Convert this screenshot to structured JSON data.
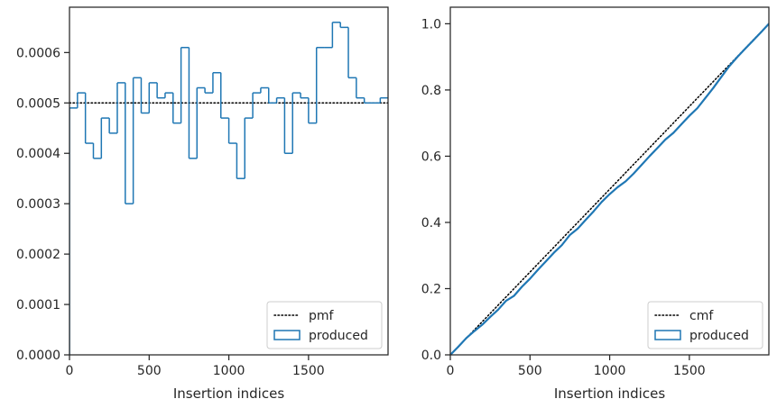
{
  "chart_data": [
    {
      "type": "line",
      "xlabel": "Insertion indices",
      "ylabel": "",
      "xlim": [
        0,
        1999
      ],
      "ylim": [
        0,
        0.00069
      ],
      "xticks": [
        0,
        500,
        1000,
        1500
      ],
      "yticks": [
        0,
        0.0001,
        0.0002,
        0.0003,
        0.0004,
        0.0005,
        0.0006
      ],
      "ytick_labels": [
        "0.0000",
        "0.0001",
        "0.0002",
        "0.0003",
        "0.0004",
        "0.0005",
        "0.0006"
      ],
      "grid": false,
      "legend_position": "lower right",
      "series": [
        {
          "name": "pmf",
          "style": "dotted",
          "color": "#000000",
          "x": [
            0,
            1999
          ],
          "y": [
            0.0005,
            0.0005
          ]
        },
        {
          "name": "produced",
          "style": "step",
          "color": "#1f77b4",
          "bin_width": 50,
          "bin_edges_start": 0,
          "values": [
            0.00049,
            0.00052,
            0.00042,
            0.00039,
            0.00047,
            0.00044,
            0.00054,
            0.0003,
            0.00055,
            0.00048,
            0.00054,
            0.00051,
            0.00052,
            0.00046,
            0.00061,
            0.00039,
            0.00053,
            0.00052,
            0.00056,
            0.00047,
            0.00042,
            0.00035,
            0.00047,
            0.00052,
            0.00053,
            0.0005,
            0.00051,
            0.0004,
            0.00052,
            0.00051,
            0.00046,
            0.00061,
            0.00061,
            0.00066,
            0.00065,
            0.00055,
            0.00051,
            0.0005,
            0.0005,
            0.00051
          ]
        }
      ]
    },
    {
      "type": "line",
      "xlabel": "Insertion indices",
      "ylabel": "",
      "xlim": [
        0,
        1999
      ],
      "ylim": [
        0,
        1.05
      ],
      "xticks": [
        0,
        500,
        1000,
        1500
      ],
      "yticks": [
        0,
        0.2,
        0.4,
        0.6,
        0.8,
        1.0
      ],
      "ytick_labels": [
        "0.0",
        "0.2",
        "0.4",
        "0.6",
        "0.8",
        "1.0"
      ],
      "grid": false,
      "legend_position": "lower right",
      "series": [
        {
          "name": "cmf",
          "style": "dotted",
          "color": "#000000",
          "x": [
            0,
            1999
          ],
          "y": [
            0,
            1.0
          ]
        },
        {
          "name": "produced",
          "style": "line",
          "color": "#1f77b4",
          "x": [
            0,
            50,
            100,
            150,
            200,
            250,
            300,
            350,
            400,
            450,
            500,
            550,
            600,
            650,
            700,
            750,
            800,
            850,
            900,
            950,
            1000,
            1050,
            1100,
            1150,
            1200,
            1250,
            1300,
            1350,
            1400,
            1450,
            1500,
            1550,
            1600,
            1650,
            1700,
            1750,
            1800,
            1850,
            1900,
            1950,
            1999
          ],
          "y": [
            0,
            0.0245,
            0.0505,
            0.0715,
            0.091,
            0.1145,
            0.1365,
            0.1635,
            0.1785,
            0.206,
            0.23,
            0.257,
            0.2825,
            0.3085,
            0.3315,
            0.362,
            0.3815,
            0.408,
            0.434,
            0.462,
            0.4855,
            0.5065,
            0.524,
            0.5475,
            0.5735,
            0.6,
            0.625,
            0.6505,
            0.6705,
            0.6965,
            0.722,
            0.745,
            0.7755,
            0.806,
            0.839,
            0.8715,
            0.899,
            0.9245,
            0.9495,
            0.9745,
            1.0
          ]
        }
      ]
    }
  ]
}
